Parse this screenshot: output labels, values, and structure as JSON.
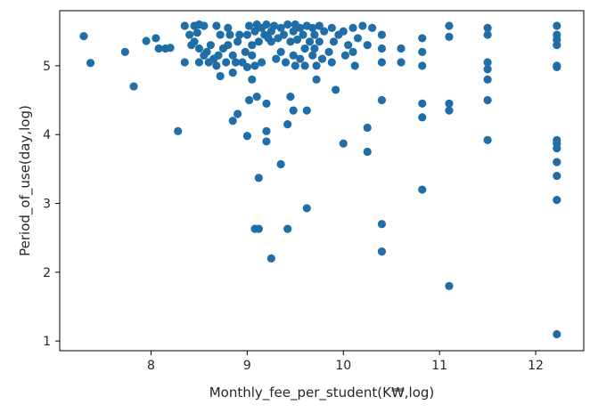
{
  "chart_data": {
    "type": "scatter",
    "title": "",
    "xlabel": "Monthly_fee_per_student(K₩,log)",
    "ylabel": "Period_of_use(day,log)",
    "xlim": [
      7.05,
      12.5
    ],
    "ylim": [
      0.86,
      5.8
    ],
    "xticks": [
      "8",
      "9",
      "10",
      "11",
      "12"
    ],
    "yticks": [
      "1",
      "2",
      "3",
      "4",
      "5"
    ],
    "grid": false,
    "marker_color": "#1f6ea8",
    "points": [
      [
        7.3,
        5.43
      ],
      [
        7.37,
        5.04
      ],
      [
        7.73,
        5.2
      ],
      [
        7.82,
        4.7
      ],
      [
        7.95,
        5.36
      ],
      [
        8.05,
        5.4
      ],
      [
        8.08,
        5.25
      ],
      [
        8.15,
        5.25
      ],
      [
        8.2,
        5.26
      ],
      [
        8.28,
        4.05
      ],
      [
        8.35,
        5.58
      ],
      [
        8.35,
        5.05
      ],
      [
        8.4,
        5.45
      ],
      [
        8.42,
        5.3
      ],
      [
        8.45,
        5.58
      ],
      [
        8.45,
        5.35
      ],
      [
        8.48,
        5.48
      ],
      [
        8.5,
        5.6
      ],
      [
        8.5,
        5.25
      ],
      [
        8.5,
        5.05
      ],
      [
        8.55,
        5.58
      ],
      [
        8.55,
        5.15
      ],
      [
        8.58,
        5.2
      ],
      [
        8.6,
        5.05
      ],
      [
        8.62,
        5.3
      ],
      [
        8.65,
        5.1
      ],
      [
        8.68,
        5.0
      ],
      [
        8.68,
        5.58
      ],
      [
        8.7,
        5.15
      ],
      [
        8.72,
        5.45
      ],
      [
        8.72,
        4.85
      ],
      [
        8.75,
        5.25
      ],
      [
        8.78,
        5.05
      ],
      [
        8.8,
        5.55
      ],
      [
        8.8,
        5.3
      ],
      [
        8.82,
        5.45
      ],
      [
        8.85,
        5.15
      ],
      [
        8.85,
        4.2
      ],
      [
        8.85,
        4.9
      ],
      [
        8.88,
        5.05
      ],
      [
        8.9,
        5.35
      ],
      [
        8.9,
        4.3
      ],
      [
        8.92,
        5.45
      ],
      [
        8.95,
        5.05
      ],
      [
        8.98,
        5.2
      ],
      [
        9.0,
        5.45
      ],
      [
        9.0,
        4.98
      ],
      [
        9.0,
        3.98
      ],
      [
        9.02,
        5.58
      ],
      [
        9.02,
        4.5
      ],
      [
        9.05,
        5.3
      ],
      [
        9.05,
        5.15
      ],
      [
        9.05,
        4.8
      ],
      [
        9.08,
        5.5
      ],
      [
        9.08,
        5.0
      ],
      [
        9.08,
        2.63
      ],
      [
        9.1,
        5.6
      ],
      [
        9.1,
        4.55
      ],
      [
        9.12,
        5.35
      ],
      [
        9.12,
        3.37
      ],
      [
        9.12,
        2.63
      ],
      [
        9.15,
        5.55
      ],
      [
        9.15,
        5.05
      ],
      [
        9.18,
        5.45
      ],
      [
        9.2,
        5.6
      ],
      [
        9.2,
        4.45
      ],
      [
        9.2,
        4.05
      ],
      [
        9.2,
        3.9
      ],
      [
        9.22,
        5.4
      ],
      [
        9.25,
        5.5
      ],
      [
        9.25,
        5.35
      ],
      [
        9.25,
        2.2
      ],
      [
        9.28,
        5.58
      ],
      [
        9.3,
        5.1
      ],
      [
        9.32,
        5.4
      ],
      [
        9.35,
        5.55
      ],
      [
        9.35,
        5.2
      ],
      [
        9.35,
        3.57
      ],
      [
        9.38,
        5.45
      ],
      [
        9.4,
        5.05
      ],
      [
        9.42,
        5.6
      ],
      [
        9.42,
        4.15
      ],
      [
        9.42,
        2.63
      ],
      [
        9.45,
        5.35
      ],
      [
        9.45,
        4.55
      ],
      [
        9.48,
        5.5
      ],
      [
        9.48,
        5.15
      ],
      [
        9.48,
        4.35
      ],
      [
        9.5,
        5.6
      ],
      [
        9.5,
        5.0
      ],
      [
        9.52,
        5.38
      ],
      [
        9.55,
        5.55
      ],
      [
        9.55,
        5.1
      ],
      [
        9.58,
        5.45
      ],
      [
        9.6,
        5.0
      ],
      [
        9.6,
        5.25
      ],
      [
        9.62,
        5.58
      ],
      [
        9.62,
        4.35
      ],
      [
        9.62,
        2.93
      ],
      [
        9.65,
        5.35
      ],
      [
        9.68,
        5.15
      ],
      [
        9.68,
        5.55
      ],
      [
        9.7,
        5.45
      ],
      [
        9.7,
        5.25
      ],
      [
        9.72,
        5.0
      ],
      [
        9.72,
        4.8
      ],
      [
        9.75,
        5.58
      ],
      [
        9.75,
        5.35
      ],
      [
        9.78,
        5.1
      ],
      [
        9.8,
        5.5
      ],
      [
        9.85,
        5.2
      ],
      [
        9.88,
        5.55
      ],
      [
        9.88,
        5.05
      ],
      [
        9.9,
        5.35
      ],
      [
        9.92,
        4.65
      ],
      [
        9.95,
        5.45
      ],
      [
        10.0,
        5.5
      ],
      [
        10.0,
        3.87
      ],
      [
        10.02,
        5.15
      ],
      [
        10.05,
        5.3
      ],
      [
        10.1,
        5.55
      ],
      [
        10.1,
        5.2
      ],
      [
        10.12,
        5.0
      ],
      [
        10.15,
        5.4
      ],
      [
        10.2,
        5.58
      ],
      [
        10.25,
        5.3
      ],
      [
        10.25,
        4.1
      ],
      [
        10.25,
        3.75
      ],
      [
        10.3,
        5.55
      ],
      [
        10.4,
        5.45
      ],
      [
        10.4,
        5.25
      ],
      [
        10.4,
        5.05
      ],
      [
        10.4,
        4.5
      ],
      [
        10.4,
        2.7
      ],
      [
        10.4,
        2.3
      ],
      [
        10.6,
        5.25
      ],
      [
        10.6,
        5.05
      ],
      [
        10.82,
        5.4
      ],
      [
        10.82,
        5.2
      ],
      [
        10.82,
        5.0
      ],
      [
        10.82,
        4.45
      ],
      [
        10.82,
        4.25
      ],
      [
        10.82,
        3.2
      ],
      [
        11.1,
        5.58
      ],
      [
        11.1,
        5.42
      ],
      [
        11.1,
        4.45
      ],
      [
        11.1,
        4.35
      ],
      [
        11.1,
        1.8
      ],
      [
        11.5,
        5.55
      ],
      [
        11.5,
        5.45
      ],
      [
        11.5,
        5.05
      ],
      [
        11.5,
        4.95
      ],
      [
        11.5,
        4.8
      ],
      [
        11.5,
        4.5
      ],
      [
        11.5,
        3.92
      ],
      [
        12.22,
        5.58
      ],
      [
        12.22,
        5.45
      ],
      [
        12.22,
        5.38
      ],
      [
        12.22,
        5.3
      ],
      [
        12.22,
        5.0
      ],
      [
        12.22,
        4.98
      ],
      [
        12.22,
        3.92
      ],
      [
        12.22,
        3.87
      ],
      [
        12.22,
        3.8
      ],
      [
        12.22,
        3.6
      ],
      [
        12.22,
        3.4
      ],
      [
        12.22,
        3.05
      ],
      [
        12.22,
        1.1
      ]
    ]
  }
}
